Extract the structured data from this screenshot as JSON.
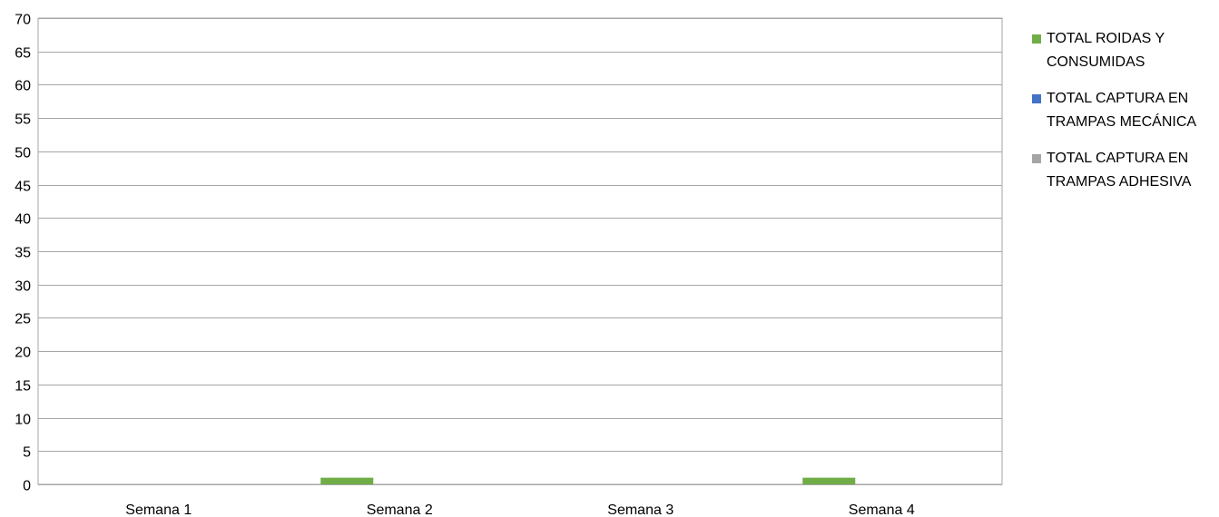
{
  "chart_data": {
    "type": "bar",
    "categories": [
      "Semana 1",
      "Semana 2",
      "Semana 3",
      "Semana 4"
    ],
    "series": [
      {
        "name": "TOTAL ROIDAS Y CONSUMIDAS",
        "color": "#70ad47",
        "values": [
          0,
          1,
          0,
          1
        ]
      },
      {
        "name": "TOTAL CAPTURA EN TRAMPAS MECÁNICA",
        "color": "#4472c4",
        "values": [
          0,
          0,
          0,
          0
        ]
      },
      {
        "name": "TOTAL CAPTURA EN TRAMPAS ADHESIVA",
        "color": "#a5a5a5",
        "values": [
          0,
          0,
          0,
          0
        ]
      }
    ],
    "ylim": [
      0,
      70
    ],
    "yticks": [
      0,
      5,
      10,
      15,
      20,
      25,
      30,
      35,
      40,
      45,
      50,
      55,
      60,
      65,
      70
    ],
    "grid": true,
    "legend_position": "right",
    "xlabel": "",
    "ylabel": "",
    "title": ""
  }
}
